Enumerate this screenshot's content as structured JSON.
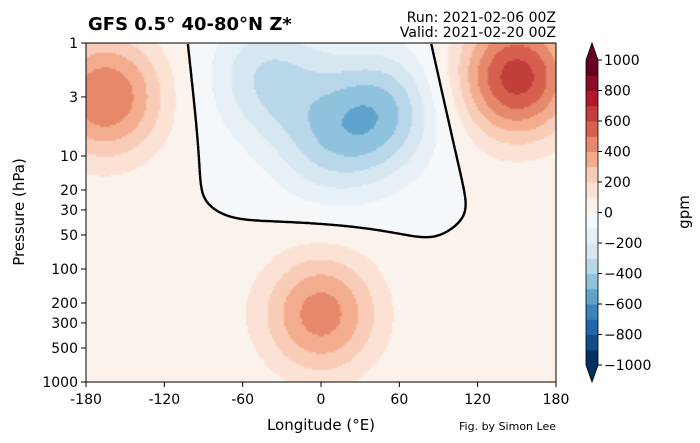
{
  "title": "GFS 0.5° 40-80°N Z*",
  "run_label": "Run: 2021-02-06 00Z",
  "valid_label": "Valid: 2021-02-20 00Z",
  "credit": "Fig. by Simon Lee",
  "chart_data": {
    "type": "heatmap",
    "xlabel": "Longitude (°E)",
    "ylabel": "Pressure (hPa)",
    "xlim": [
      -180,
      180
    ],
    "ylim": [
      1000,
      1
    ],
    "y_scale": "log",
    "xticks": [
      -180,
      -120,
      -60,
      0,
      60,
      120,
      180
    ],
    "yticks": [
      1,
      3,
      10,
      20,
      30,
      50,
      100,
      200,
      300,
      500,
      1000
    ],
    "colorbar": {
      "label": "gpm",
      "min": -1000,
      "max": 1000,
      "step": 100,
      "ticks": [
        1000,
        800,
        600,
        400,
        200,
        0,
        -200,
        -400,
        -600,
        -800,
        -1000
      ],
      "extend": "both",
      "cmap": "RdBu_r"
    },
    "zero_contour": "black",
    "anomaly_centers": [
      {
        "lon": -165,
        "p": 3,
        "value": 500
      },
      {
        "lon": 150,
        "p": 2,
        "value": 650
      },
      {
        "lon": 0,
        "p": 250,
        "value": 450
      },
      {
        "lon": -40,
        "p": 2,
        "value": -300
      },
      {
        "lon": 45,
        "p": 4,
        "value": -400
      },
      {
        "lon": 5,
        "p": 8,
        "value": -250
      },
      {
        "lon": -110,
        "p": 250,
        "value": 50
      },
      {
        "lon": 145,
        "p": 350,
        "value": 80
      }
    ]
  }
}
